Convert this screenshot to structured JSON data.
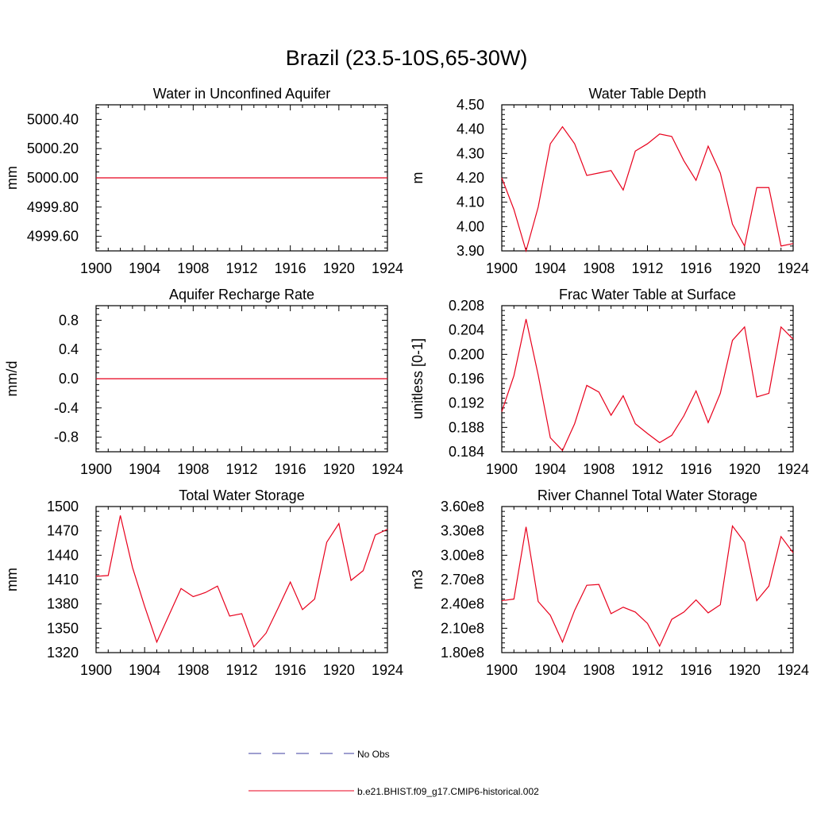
{
  "figure_title": "Brazil (23.5-10S,65-30W)",
  "colors": {
    "model": "#e8001c",
    "obs": "#3c3ca0",
    "axis": "#000000"
  },
  "legend": {
    "entries": [
      {
        "label": "No Obs",
        "style": "dashed",
        "color": "#3c3ca0"
      },
      {
        "label": "b.e21.BHIST.f09_g17.CMIP6-historical.002",
        "style": "solid",
        "color": "#e8001c"
      }
    ]
  },
  "chart_data": [
    {
      "type": "line",
      "title": "Water in Unconfined Aquifer",
      "ylabel": "mm",
      "xlim": [
        1900,
        1924
      ],
      "xticks": [
        1900,
        1904,
        1908,
        1912,
        1916,
        1920,
        1924
      ],
      "xtick_labels": [
        "1900",
        "1904",
        "1908",
        "1912",
        "1916",
        "1920",
        "1924"
      ],
      "ylim": [
        4999.5,
        5000.5
      ],
      "yticks": [
        4999.6,
        4999.8,
        5000.0,
        5000.2,
        5000.4
      ],
      "ytick_labels": [
        "4999.60",
        "4999.80",
        "5000.00",
        "5000.20",
        "5000.40"
      ],
      "series": [
        {
          "name": "b.e21.BHIST.f09_g17.CMIP6-historical.002",
          "x": [
            1900,
            1901,
            1902,
            1903,
            1904,
            1905,
            1906,
            1907,
            1908,
            1909,
            1910,
            1911,
            1912,
            1913,
            1914,
            1915,
            1916,
            1917,
            1918,
            1919,
            1920,
            1921,
            1922,
            1923,
            1924
          ],
          "y": [
            5000,
            5000,
            5000,
            5000,
            5000,
            5000,
            5000,
            5000,
            5000,
            5000,
            5000,
            5000,
            5000,
            5000,
            5000,
            5000,
            5000,
            5000,
            5000,
            5000,
            5000,
            5000,
            5000,
            5000,
            5000
          ]
        }
      ]
    },
    {
      "type": "line",
      "title": "Water Table Depth",
      "ylabel": "m",
      "xlim": [
        1900,
        1924
      ],
      "xticks": [
        1900,
        1904,
        1908,
        1912,
        1916,
        1920,
        1924
      ],
      "xtick_labels": [
        "1900",
        "1904",
        "1908",
        "1912",
        "1916",
        "1920",
        "1924"
      ],
      "ylim": [
        3.9,
        4.5
      ],
      "yticks": [
        3.9,
        4.0,
        4.1,
        4.2,
        4.3,
        4.4,
        4.5
      ],
      "ytick_labels": [
        "3.90",
        "4.00",
        "4.10",
        "4.20",
        "4.30",
        "4.40",
        "4.50"
      ],
      "series": [
        {
          "name": "b.e21.BHIST.f09_g17.CMIP6-historical.002",
          "x": [
            1900,
            1901,
            1902,
            1903,
            1904,
            1905,
            1906,
            1907,
            1908,
            1909,
            1910,
            1911,
            1912,
            1913,
            1914,
            1915,
            1916,
            1917,
            1918,
            1919,
            1920,
            1921,
            1922,
            1923,
            1924
          ],
          "y": [
            4.2,
            4.07,
            3.9,
            4.08,
            4.34,
            4.41,
            4.34,
            4.21,
            4.22,
            4.23,
            4.15,
            4.31,
            4.34,
            4.38,
            4.37,
            4.27,
            4.19,
            4.33,
            4.22,
            4.01,
            3.92,
            4.16,
            4.16,
            3.92,
            3.93
          ]
        }
      ]
    },
    {
      "type": "line",
      "title": "Aquifer Recharge Rate",
      "ylabel": "mm/d",
      "xlim": [
        1900,
        1924
      ],
      "xticks": [
        1900,
        1904,
        1908,
        1912,
        1916,
        1920,
        1924
      ],
      "xtick_labels": [
        "1900",
        "1904",
        "1908",
        "1912",
        "1916",
        "1920",
        "1924"
      ],
      "ylim": [
        -1.0,
        1.0
      ],
      "yticks": [
        -0.8,
        -0.4,
        0.0,
        0.4,
        0.8
      ],
      "ytick_labels": [
        "-0.8",
        "-0.4",
        "0.0",
        "0.4",
        "0.8"
      ],
      "series": [
        {
          "name": "b.e21.BHIST.f09_g17.CMIP6-historical.002",
          "x": [
            1900,
            1901,
            1902,
            1903,
            1904,
            1905,
            1906,
            1907,
            1908,
            1909,
            1910,
            1911,
            1912,
            1913,
            1914,
            1915,
            1916,
            1917,
            1918,
            1919,
            1920,
            1921,
            1922,
            1923,
            1924
          ],
          "y": [
            0,
            0,
            0,
            0,
            0,
            0,
            0,
            0,
            0,
            0,
            0,
            0,
            0,
            0,
            0,
            0,
            0,
            0,
            0,
            0,
            0,
            0,
            0,
            0,
            0
          ]
        }
      ]
    },
    {
      "type": "line",
      "title": "Frac Water Table at Surface",
      "ylabel": "unitless [0-1]",
      "xlim": [
        1900,
        1924
      ],
      "xticks": [
        1900,
        1904,
        1908,
        1912,
        1916,
        1920,
        1924
      ],
      "xtick_labels": [
        "1900",
        "1904",
        "1908",
        "1912",
        "1916",
        "1920",
        "1924"
      ],
      "ylim": [
        0.184,
        0.208
      ],
      "yticks": [
        0.184,
        0.188,
        0.192,
        0.196,
        0.2,
        0.204,
        0.208
      ],
      "ytick_labels": [
        "0.184",
        "0.188",
        "0.192",
        "0.196",
        "0.200",
        "0.204",
        "0.208"
      ],
      "series": [
        {
          "name": "b.e21.BHIST.f09_g17.CMIP6-historical.002",
          "x": [
            1900,
            1901,
            1902,
            1903,
            1904,
            1905,
            1906,
            1907,
            1908,
            1909,
            1910,
            1911,
            1912,
            1913,
            1914,
            1915,
            1916,
            1917,
            1918,
            1919,
            1920,
            1921,
            1922,
            1923,
            1924
          ],
          "y": [
            0.1906,
            0.1965,
            0.2058,
            0.1966,
            0.1863,
            0.1842,
            0.1886,
            0.1949,
            0.1938,
            0.19,
            0.1932,
            0.1886,
            0.187,
            0.1855,
            0.1867,
            0.1899,
            0.194,
            0.1888,
            0.1936,
            0.2023,
            0.2045,
            0.193,
            0.1936,
            0.2045,
            0.2025
          ]
        }
      ]
    },
    {
      "type": "line",
      "title": "Total Water Storage",
      "ylabel": "mm",
      "xlim": [
        1900,
        1924
      ],
      "xticks": [
        1900,
        1904,
        1908,
        1912,
        1916,
        1920,
        1924
      ],
      "xtick_labels": [
        "1900",
        "1904",
        "1908",
        "1912",
        "1916",
        "1920",
        "1924"
      ],
      "ylim": [
        1320,
        1500
      ],
      "yticks": [
        1320,
        1350,
        1380,
        1410,
        1440,
        1470,
        1500
      ],
      "ytick_labels": [
        "1320",
        "1350",
        "1380",
        "1410",
        "1440",
        "1470",
        "1500"
      ],
      "series": [
        {
          "name": "b.e21.BHIST.f09_g17.CMIP6-historical.002",
          "x": [
            1900,
            1901,
            1902,
            1903,
            1904,
            1905,
            1906,
            1907,
            1908,
            1909,
            1910,
            1911,
            1912,
            1913,
            1914,
            1915,
            1916,
            1917,
            1918,
            1919,
            1920,
            1921,
            1922,
            1923,
            1924
          ],
          "y": [
            1414,
            1415,
            1489,
            1425,
            1377,
            1333,
            1366,
            1399,
            1389,
            1394,
            1402,
            1365,
            1368,
            1327,
            1344,
            1375,
            1407,
            1373,
            1386,
            1456,
            1479,
            1409,
            1421,
            1465,
            1472
          ]
        }
      ]
    },
    {
      "type": "line",
      "title": "River Channel Total Water Storage",
      "ylabel": "m3",
      "xlim": [
        1900,
        1924
      ],
      "xticks": [
        1900,
        1904,
        1908,
        1912,
        1916,
        1920,
        1924
      ],
      "xtick_labels": [
        "1900",
        "1904",
        "1908",
        "1912",
        "1916",
        "1920",
        "1924"
      ],
      "ylim": [
        180000000,
        360000000
      ],
      "yticks": [
        180000000,
        210000000,
        240000000,
        270000000,
        300000000,
        330000000,
        360000000
      ],
      "ytick_labels": [
        "1.80e8",
        "2.10e8",
        "2.40e8",
        "2.70e8",
        "3.00e8",
        "3.30e8",
        "3.60e8"
      ],
      "series": [
        {
          "name": "b.e21.BHIST.f09_g17.CMIP6-historical.002",
          "x": [
            1900,
            1901,
            1902,
            1903,
            1904,
            1905,
            1906,
            1907,
            1908,
            1909,
            1910,
            1911,
            1912,
            1913,
            1914,
            1915,
            1916,
            1917,
            1918,
            1919,
            1920,
            1921,
            1922,
            1923,
            1924
          ],
          "y": [
            244000000,
            246000000,
            335000000,
            243000000,
            226000000,
            193000000,
            232000000,
            263000000,
            264000000,
            228000000,
            236000000,
            230000000,
            216000000,
            188000000,
            221000000,
            230000000,
            245000000,
            229000000,
            239000000,
            336000000,
            316000000,
            244000000,
            262000000,
            323000000,
            303000000
          ]
        }
      ]
    }
  ]
}
